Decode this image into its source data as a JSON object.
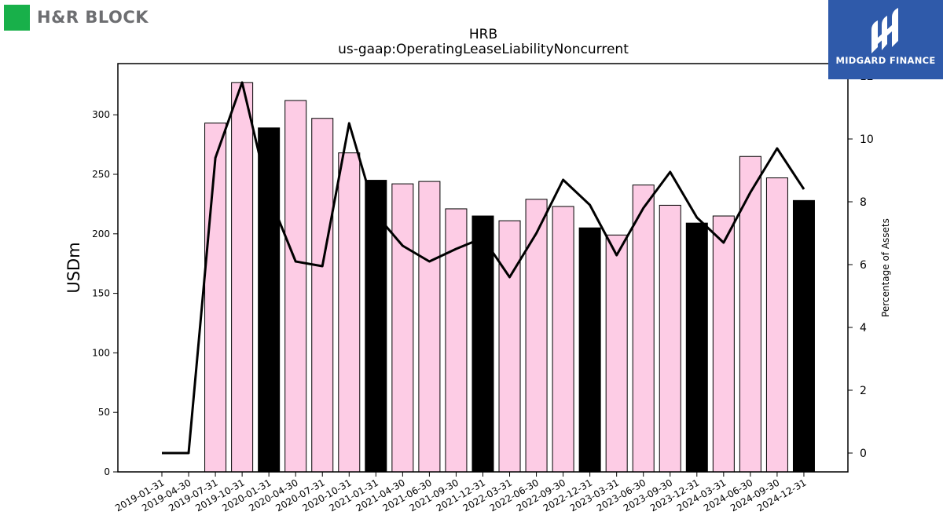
{
  "brand_left": {
    "name": "H&R BLOCK"
  },
  "brand_right": {
    "name": "MIDGARD FINANCE"
  },
  "chart_data": {
    "type": "bar",
    "title": "HRB",
    "subtitle": "us-gaap:OperatingLeaseLiabilityNoncurrent",
    "ylabel": "USDm",
    "y2label": "Percentage of Assets",
    "ylim": [
      0,
      343
    ],
    "y2lim": [
      -0.6,
      12.4
    ],
    "yticks": [
      0,
      50,
      100,
      150,
      200,
      250,
      300
    ],
    "y2ticks": [
      0,
      2,
      4,
      6,
      8,
      10,
      12
    ],
    "categories": [
      "2019-01-31",
      "2019-04-30",
      "2019-07-31",
      "2019-10-31",
      "2020-01-31",
      "2020-04-30",
      "2020-07-31",
      "2020-10-31",
      "2021-01-31",
      "2021-04-30",
      "2021-06-30",
      "2021-09-30",
      "2021-12-31",
      "2022-03-31",
      "2022-06-30",
      "2022-09-30",
      "2022-12-31",
      "2023-03-31",
      "2023-06-30",
      "2023-09-30",
      "2023-12-31",
      "2024-03-31",
      "2024-06-30",
      "2024-09-30",
      "2024-12-31"
    ],
    "series": [
      {
        "type": "bar",
        "values": [
          0,
          0,
          293,
          327,
          289,
          312,
          297,
          268,
          245,
          242,
          244,
          221,
          215,
          211,
          229,
          223,
          205,
          199,
          241,
          224,
          209,
          215,
          265,
          247,
          228
        ],
        "colors": [
          "#fdcce5",
          "#fdcce5",
          "#fdcce5",
          "#fdcce5",
          "#000000",
          "#fdcce5",
          "#fdcce5",
          "#fdcce5",
          "#000000",
          "#fdcce5",
          "#fdcce5",
          "#fdcce5",
          "#000000",
          "#fdcce5",
          "#fdcce5",
          "#fdcce5",
          "#000000",
          "#fdcce5",
          "#fdcce5",
          "#fdcce5",
          "#000000",
          "#fdcce5",
          "#fdcce5",
          "#fdcce5",
          "#000000"
        ]
      },
      {
        "type": "line",
        "axis": "right",
        "color": "#000000",
        "values": [
          0,
          0,
          9.4,
          11.8,
          8.2,
          6.1,
          5.95,
          10.5,
          7.6,
          6.6,
          6.1,
          6.5,
          6.85,
          5.6,
          7.0,
          8.7,
          7.9,
          6.3,
          7.8,
          8.95,
          7.5,
          6.7,
          8.3,
          9.7,
          8.4
        ]
      }
    ],
    "grid": false,
    "legend": "none"
  }
}
